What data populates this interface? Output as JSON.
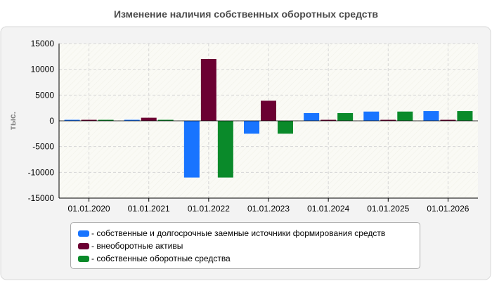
{
  "chart_data": {
    "type": "bar",
    "title": "Изменение наличия собственных оборотных средств",
    "ylabel": "тыс.",
    "xlabel": "",
    "categories": [
      "01.01.2020",
      "01.01.2021",
      "01.01.2022",
      "01.01.2023",
      "01.01.2024",
      "01.01.2025",
      "01.01.2026"
    ],
    "ylim": [
      -15000,
      15000
    ],
    "yticks": [
      15000,
      10000,
      5000,
      0,
      -5000,
      -10000,
      -15000
    ],
    "grid": true,
    "legend_position": "bottom",
    "series": [
      {
        "name": "- собственные и долгосрочные заемные источники формирования средств",
        "color": "#1874ff",
        "values": [
          200,
          200,
          -11000,
          -2500,
          1500,
          1800,
          1900
        ]
      },
      {
        "name": "- внеоборотные активы",
        "color": "#6b0032",
        "values": [
          200,
          600,
          12000,
          3900,
          200,
          200,
          200
        ]
      },
      {
        "name": "- собственные оборотные средства",
        "color": "#0a8a2a",
        "values": [
          200,
          200,
          -11000,
          -2500,
          1500,
          1800,
          1900
        ]
      }
    ]
  }
}
